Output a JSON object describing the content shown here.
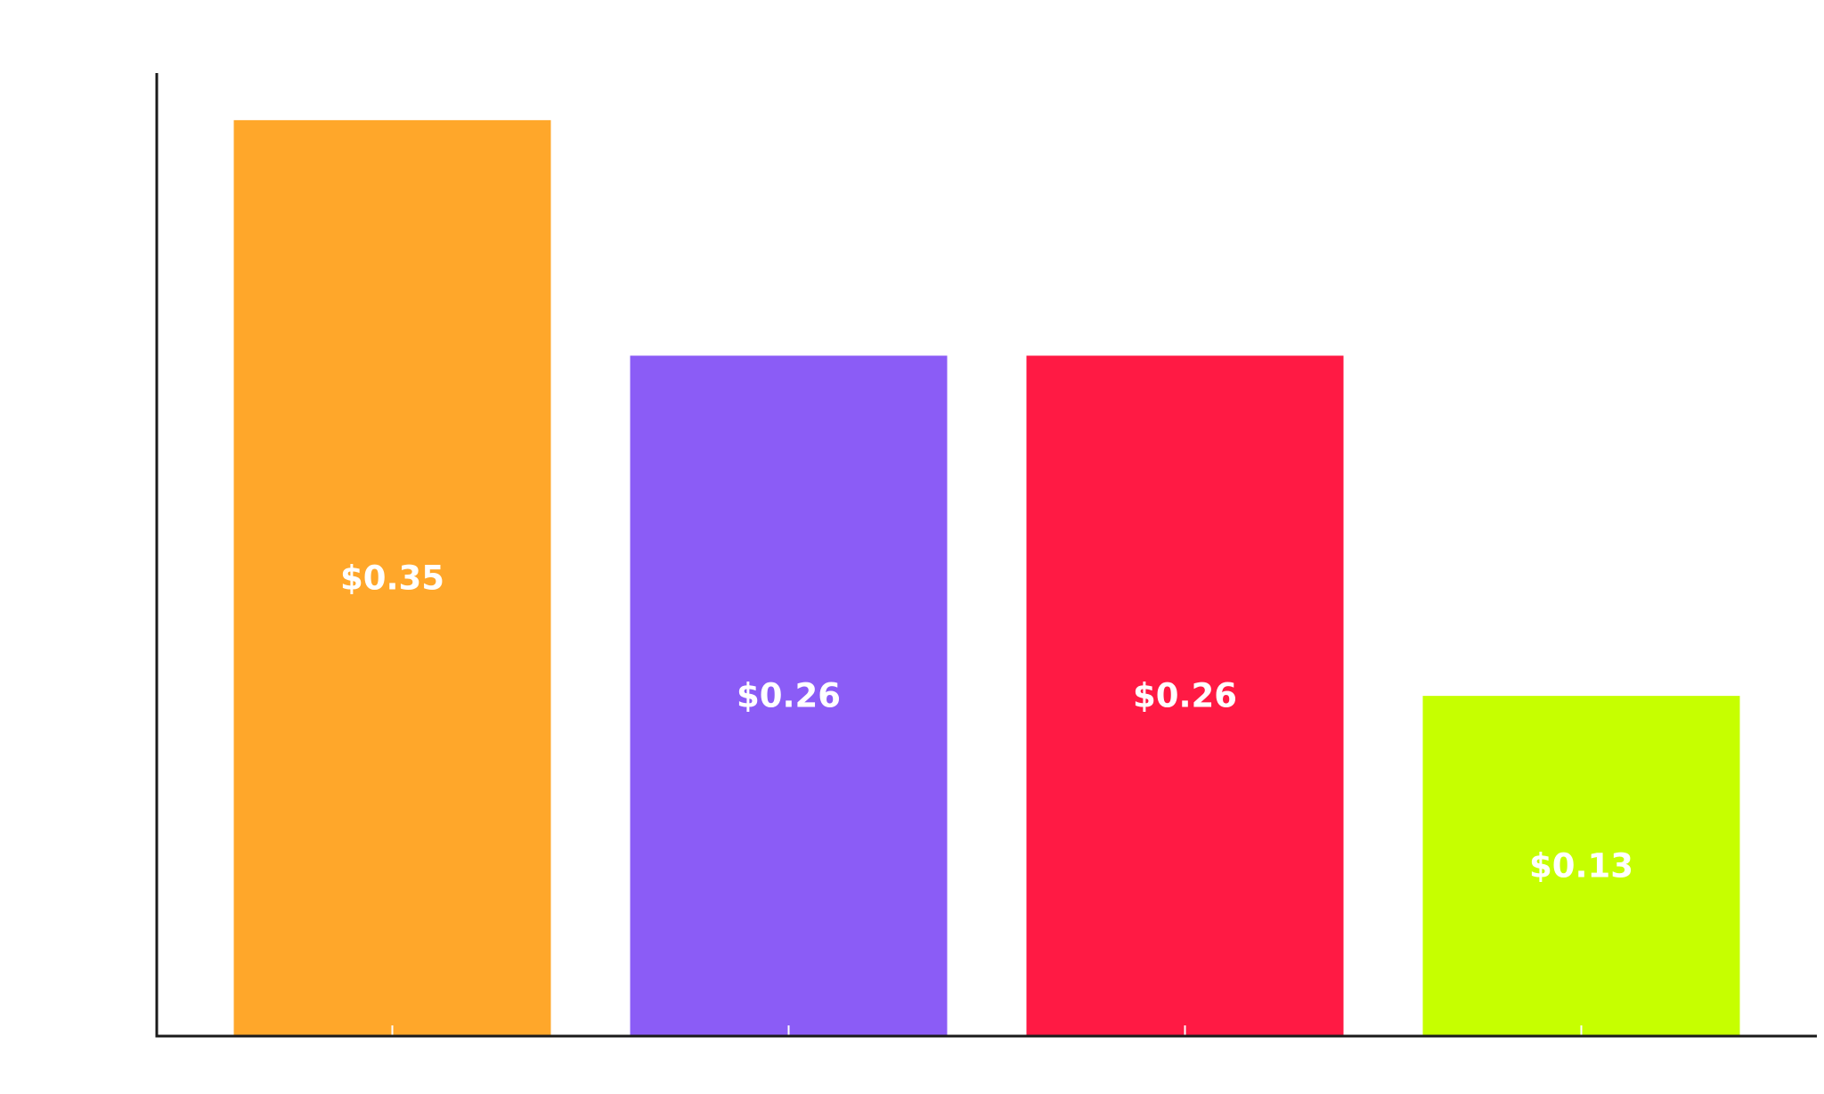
{
  "chart_data": {
    "type": "bar",
    "categories": [
      "",
      "",
      "",
      ""
    ],
    "values": [
      0.35,
      0.26,
      0.26,
      0.13
    ],
    "data_labels": [
      "$0.35",
      "$0.26",
      "$0.26",
      "$0.13"
    ],
    "colors": [
      "#FFA72A",
      "#8B5CF6",
      "#FF1A44",
      "#C6FF00"
    ],
    "title": "",
    "xlabel": "",
    "ylabel": "",
    "ylim": [
      0,
      0.368
    ],
    "grid": false,
    "legend": "none",
    "label_color": "#FFFFFF",
    "axis_color": "#1A1A1A"
  }
}
